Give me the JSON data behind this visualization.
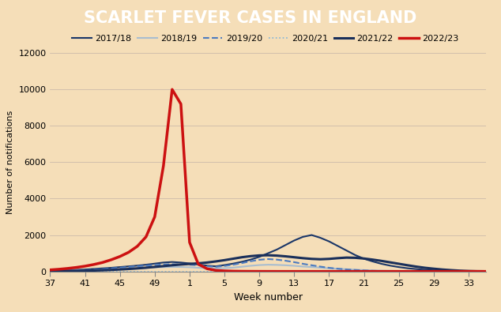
{
  "title": "SCARLET FEVER CASES IN ENGLAND",
  "title_bg": "#cc0000",
  "title_color": "#ffffff",
  "xlabel": "Week number",
  "ylabel": "Number of notifications",
  "ylim": [
    0,
    12000
  ],
  "yticks": [
    0,
    2000,
    4000,
    6000,
    8000,
    10000,
    12000
  ],
  "xtick_labels": [
    "37",
    "41",
    "45",
    "49",
    "1",
    "5",
    "9",
    "13",
    "17",
    "21",
    "25",
    "29",
    "33"
  ],
  "background_color": "#f5deb8",
  "plot_bg": "#f5deb8",
  "series_order": [
    "2017/18",
    "2018/19",
    "2019/20",
    "2020/21",
    "2021/22",
    "2022/23"
  ],
  "line_styles": {
    "2017/18": {
      "color": "#1a3668",
      "lw": 1.5,
      "ls": "-"
    },
    "2018/19": {
      "color": "#a8bdd0",
      "lw": 1.5,
      "ls": "-"
    },
    "2019/20": {
      "color": "#4d7bbf",
      "lw": 1.5,
      "ls": "--"
    },
    "2020/21": {
      "color": "#7fb3d9",
      "lw": 1.2,
      "ls": ":"
    },
    "2021/22": {
      "color": "#1a2f5a",
      "lw": 2.2,
      "ls": "-"
    },
    "2022/23": {
      "color": "#cc1111",
      "lw": 2.5,
      "ls": "-"
    }
  },
  "series_data": {
    "2017/18": [
      55,
      65,
      75,
      90,
      110,
      140,
      170,
      200,
      240,
      280,
      320,
      370,
      430,
      490,
      520,
      490,
      440,
      380,
      320,
      280,
      350,
      430,
      530,
      650,
      800,
      1000,
      1200,
      1450,
      1700,
      1900,
      2000,
      1850,
      1650,
      1400,
      1150,
      900,
      700,
      550,
      420,
      320,
      240,
      175,
      130,
      90,
      60,
      40,
      25,
      15,
      8,
      4,
      2
    ],
    "2018/19": [
      25,
      30,
      38,
      48,
      60,
      75,
      90,
      105,
      120,
      140,
      165,
      195,
      220,
      240,
      250,
      245,
      230,
      200,
      180,
      160,
      180,
      210,
      260,
      310,
      350,
      370,
      360,
      340,
      310,
      270,
      240,
      210,
      175,
      145,
      120,
      95,
      75,
      58,
      45,
      35,
      25,
      18,
      12,
      8,
      5,
      3,
      2,
      1,
      1,
      1,
      1
    ],
    "2019/20": [
      18,
      25,
      35,
      50,
      70,
      95,
      125,
      165,
      205,
      245,
      285,
      320,
      355,
      385,
      400,
      390,
      370,
      335,
      290,
      250,
      300,
      370,
      460,
      560,
      640,
      680,
      650,
      590,
      510,
      420,
      340,
      265,
      200,
      150,
      110,
      80,
      55,
      35,
      20,
      10,
      5,
      3,
      2,
      1,
      1,
      1,
      1,
      1,
      1,
      1,
      1
    ],
    "2020/21": [
      3,
      3,
      3,
      3,
      3,
      3,
      3,
      3,
      3,
      3,
      3,
      3,
      3,
      3,
      3,
      3,
      3,
      3,
      3,
      3,
      3,
      3,
      3,
      3,
      3,
      3,
      3,
      3,
      3,
      3,
      3,
      3,
      3,
      3,
      3,
      3,
      3,
      3,
      3,
      3,
      3,
      3,
      3,
      3,
      3,
      3,
      3,
      3,
      3,
      3,
      3
    ],
    "2021/22": [
      8,
      12,
      18,
      26,
      37,
      50,
      66,
      85,
      108,
      135,
      168,
      205,
      250,
      295,
      340,
      380,
      415,
      445,
      490,
      550,
      620,
      700,
      780,
      840,
      880,
      890,
      870,
      830,
      780,
      730,
      690,
      670,
      690,
      730,
      760,
      750,
      710,
      650,
      580,
      500,
      420,
      340,
      265,
      200,
      150,
      105,
      70,
      42,
      22,
      10,
      5
    ],
    "2022/23": [
      85,
      120,
      165,
      220,
      290,
      380,
      490,
      640,
      820,
      1050,
      1380,
      1900,
      3000,
      5800,
      10000,
      9200,
      1600,
      400,
      150,
      60,
      30,
      15,
      8,
      5,
      3,
      2,
      1,
      1,
      1,
      1,
      1,
      1,
      1,
      1,
      1,
      1,
      1,
      1,
      1,
      1,
      1,
      1,
      1,
      1,
      1,
      1,
      1,
      1,
      1,
      1,
      1
    ]
  }
}
